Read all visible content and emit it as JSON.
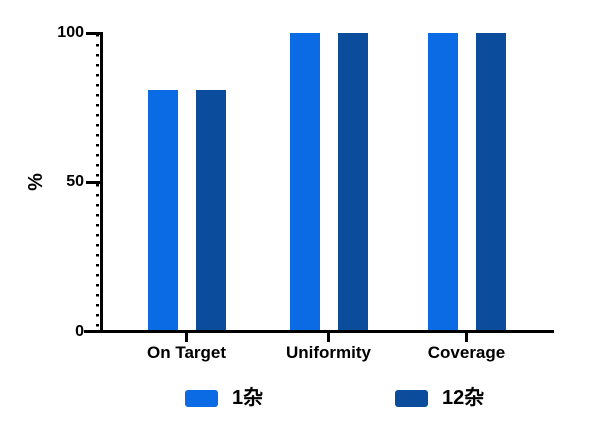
{
  "chart_data": {
    "type": "bar",
    "title": "",
    "categories": [
      "On Target",
      "Uniformity",
      "Coverage"
    ],
    "series": [
      {
        "name": "1杂",
        "color": "#0A6BE4",
        "values": [
          81,
          100,
          100
        ]
      },
      {
        "name": "12杂",
        "color": "#0C4C9C",
        "values": [
          81,
          100,
          100
        ]
      }
    ],
    "xlabel": "",
    "ylabel": "%",
    "ylim": [
      0,
      100
    ],
    "yticks": [
      0,
      50,
      100
    ],
    "grid": false,
    "legend_position": "bottom",
    "axis_color": "#000000",
    "background_color": "#FFFFFF"
  }
}
